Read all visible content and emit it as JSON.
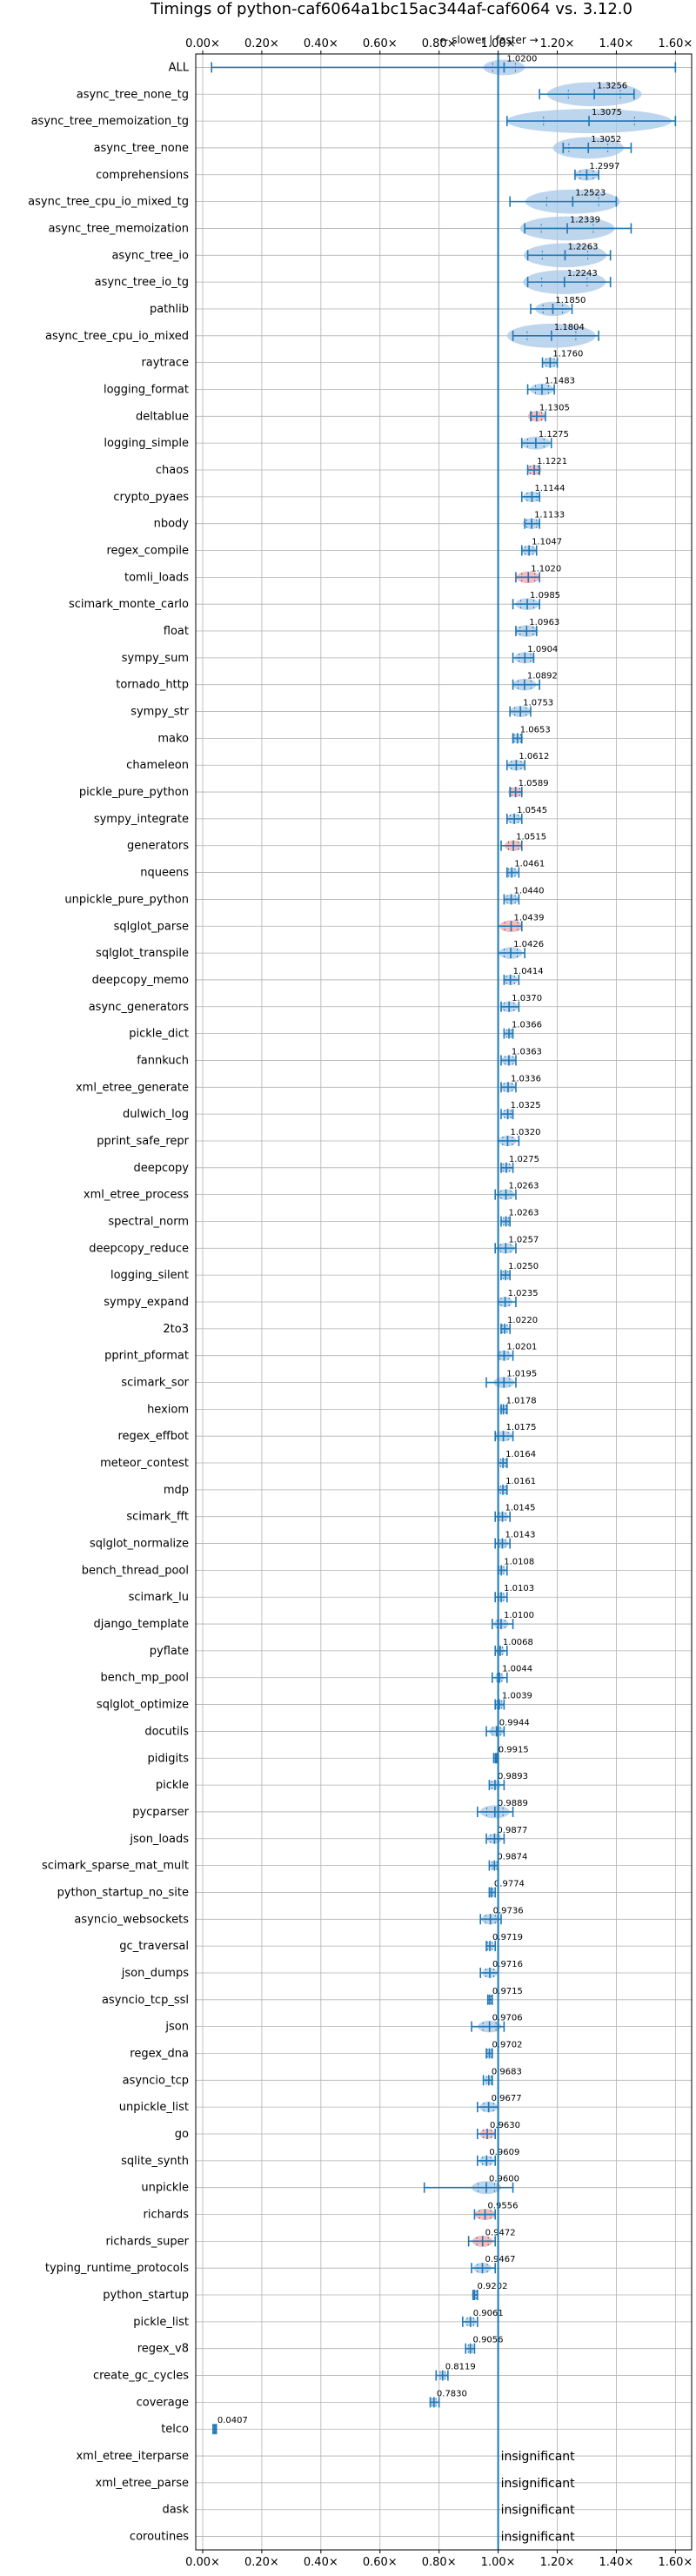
{
  "chart_data": {
    "type": "violin",
    "title": "Timings of python-caf6064a1bc15ac344af-caf6064 vs. 3.12.0",
    "annotation": "← slower | faster →",
    "xlim": [
      0.0,
      1.65
    ],
    "xticks": [
      0.0,
      0.2,
      0.4,
      0.6,
      0.8,
      1.0,
      1.2,
      1.4,
      1.6
    ],
    "xtick_labels": [
      "0.00×",
      "0.20×",
      "0.40×",
      "0.60×",
      "0.80×",
      "1.00×",
      "1.20×",
      "1.40×",
      "1.60×"
    ],
    "reference_line": 1.0,
    "insignificant_label": "insignificant",
    "grid": true,
    "colors": {
      "normal": "#1f77b4",
      "fill": "#a7c7e7",
      "highlight": "#f4a6a6",
      "grid": "#b0b0b0"
    },
    "benchmarks": [
      {
        "name": "ALL",
        "value": 1.02,
        "low": 0.03,
        "high": 1.6,
        "spread": 0.07,
        "highlight": false
      },
      {
        "name": "async_tree_none_tg",
        "value": 1.3256,
        "low": 1.14,
        "high": 1.46,
        "spread": 0.16,
        "highlight": false
      },
      {
        "name": "async_tree_memoization_tg",
        "value": 1.3075,
        "low": 1.03,
        "high": 1.6,
        "spread": 0.28,
        "highlight": false
      },
      {
        "name": "async_tree_none",
        "value": 1.3052,
        "low": 1.22,
        "high": 1.45,
        "spread": 0.12,
        "highlight": false
      },
      {
        "name": "comprehensions",
        "value": 1.2997,
        "low": 1.26,
        "high": 1.34,
        "spread": 0.04,
        "highlight": false
      },
      {
        "name": "async_tree_cpu_io_mixed_tg",
        "value": 1.2523,
        "low": 1.04,
        "high": 1.4,
        "spread": 0.16,
        "highlight": false
      },
      {
        "name": "async_tree_memoization",
        "value": 1.2339,
        "low": 1.09,
        "high": 1.45,
        "spread": 0.16,
        "highlight": false
      },
      {
        "name": "async_tree_io",
        "value": 1.2263,
        "low": 1.1,
        "high": 1.38,
        "spread": 0.14,
        "highlight": false
      },
      {
        "name": "async_tree_io_tg",
        "value": 1.2243,
        "low": 1.1,
        "high": 1.38,
        "spread": 0.14,
        "highlight": false
      },
      {
        "name": "pathlib",
        "value": 1.185,
        "low": 1.11,
        "high": 1.25,
        "spread": 0.06,
        "highlight": false
      },
      {
        "name": "async_tree_cpu_io_mixed",
        "value": 1.1804,
        "low": 1.05,
        "high": 1.34,
        "spread": 0.15,
        "highlight": false
      },
      {
        "name": "raytrace",
        "value": 1.176,
        "low": 1.15,
        "high": 1.2,
        "spread": 0.025,
        "highlight": false
      },
      {
        "name": "logging_format",
        "value": 1.1483,
        "low": 1.1,
        "high": 1.19,
        "spread": 0.04,
        "highlight": false
      },
      {
        "name": "deltablue",
        "value": 1.1305,
        "low": 1.11,
        "high": 1.16,
        "spread": 0.03,
        "highlight": true
      },
      {
        "name": "logging_simple",
        "value": 1.1275,
        "low": 1.08,
        "high": 1.18,
        "spread": 0.05,
        "highlight": false
      },
      {
        "name": "chaos",
        "value": 1.1221,
        "low": 1.1,
        "high": 1.14,
        "spread": 0.025,
        "highlight": true
      },
      {
        "name": "crypto_pyaes",
        "value": 1.1144,
        "low": 1.08,
        "high": 1.14,
        "spread": 0.03,
        "highlight": false
      },
      {
        "name": "nbody",
        "value": 1.1133,
        "low": 1.09,
        "high": 1.14,
        "spread": 0.03,
        "highlight": false
      },
      {
        "name": "regex_compile",
        "value": 1.1047,
        "low": 1.08,
        "high": 1.13,
        "spread": 0.025,
        "highlight": false
      },
      {
        "name": "tomli_loads",
        "value": 1.102,
        "low": 1.06,
        "high": 1.14,
        "spread": 0.04,
        "highlight": true
      },
      {
        "name": "scimark_monte_carlo",
        "value": 1.0985,
        "low": 1.05,
        "high": 1.14,
        "spread": 0.04,
        "highlight": false
      },
      {
        "name": "float",
        "value": 1.0963,
        "low": 1.06,
        "high": 1.13,
        "spread": 0.04,
        "highlight": false
      },
      {
        "name": "sympy_sum",
        "value": 1.0904,
        "low": 1.05,
        "high": 1.12,
        "spread": 0.035,
        "highlight": false
      },
      {
        "name": "tornado_http",
        "value": 1.0892,
        "low": 1.05,
        "high": 1.14,
        "spread": 0.04,
        "highlight": false
      },
      {
        "name": "sympy_str",
        "value": 1.0753,
        "low": 1.04,
        "high": 1.11,
        "spread": 0.035,
        "highlight": false
      },
      {
        "name": "mako",
        "value": 1.0653,
        "low": 1.05,
        "high": 1.08,
        "spread": 0.02,
        "highlight": false
      },
      {
        "name": "chameleon",
        "value": 1.0612,
        "low": 1.03,
        "high": 1.09,
        "spread": 0.03,
        "highlight": false
      },
      {
        "name": "pickle_pure_python",
        "value": 1.0589,
        "low": 1.04,
        "high": 1.08,
        "spread": 0.025,
        "highlight": true
      },
      {
        "name": "sympy_integrate",
        "value": 1.0545,
        "low": 1.03,
        "high": 1.08,
        "spread": 0.025,
        "highlight": false
      },
      {
        "name": "generators",
        "value": 1.0515,
        "low": 1.01,
        "high": 1.08,
        "spread": 0.03,
        "highlight": true
      },
      {
        "name": "nqueens",
        "value": 1.0461,
        "low": 1.03,
        "high": 1.07,
        "spread": 0.02,
        "highlight": false
      },
      {
        "name": "unpickle_pure_python",
        "value": 1.044,
        "low": 1.02,
        "high": 1.07,
        "spread": 0.025,
        "highlight": false
      },
      {
        "name": "sqlglot_parse",
        "value": 1.0439,
        "low": 1.0,
        "high": 1.08,
        "spread": 0.04,
        "highlight": true
      },
      {
        "name": "sqlglot_transpile",
        "value": 1.0426,
        "low": 1.0,
        "high": 1.09,
        "spread": 0.04,
        "highlight": false
      },
      {
        "name": "deepcopy_memo",
        "value": 1.0414,
        "low": 1.02,
        "high": 1.07,
        "spread": 0.025,
        "highlight": false
      },
      {
        "name": "async_generators",
        "value": 1.037,
        "low": 1.01,
        "high": 1.07,
        "spread": 0.03,
        "highlight": false
      },
      {
        "name": "pickle_dict",
        "value": 1.0366,
        "low": 1.02,
        "high": 1.05,
        "spread": 0.015,
        "highlight": false
      },
      {
        "name": "fannkuch",
        "value": 1.0363,
        "low": 1.01,
        "high": 1.06,
        "spread": 0.025,
        "highlight": false
      },
      {
        "name": "xml_etree_generate",
        "value": 1.0336,
        "low": 1.01,
        "high": 1.06,
        "spread": 0.025,
        "highlight": false
      },
      {
        "name": "dulwich_log",
        "value": 1.0325,
        "low": 1.01,
        "high": 1.05,
        "spread": 0.02,
        "highlight": false
      },
      {
        "name": "pprint_safe_repr",
        "value": 1.032,
        "low": 1.0,
        "high": 1.07,
        "spread": 0.03,
        "highlight": false
      },
      {
        "name": "deepcopy",
        "value": 1.0275,
        "low": 1.01,
        "high": 1.05,
        "spread": 0.02,
        "highlight": false
      },
      {
        "name": "xml_etree_process",
        "value": 1.0263,
        "low": 0.99,
        "high": 1.06,
        "spread": 0.03,
        "highlight": false
      },
      {
        "name": "spectral_norm",
        "value": 1.0263,
        "low": 1.01,
        "high": 1.04,
        "spread": 0.015,
        "highlight": false
      },
      {
        "name": "deepcopy_reduce",
        "value": 1.0257,
        "low": 0.99,
        "high": 1.06,
        "spread": 0.03,
        "highlight": false
      },
      {
        "name": "logging_silent",
        "value": 1.025,
        "low": 1.01,
        "high": 1.04,
        "spread": 0.015,
        "highlight": false
      },
      {
        "name": "sympy_expand",
        "value": 1.0235,
        "low": 1.0,
        "high": 1.06,
        "spread": 0.025,
        "highlight": false
      },
      {
        "name": "2to3",
        "value": 1.022,
        "low": 1.01,
        "high": 1.04,
        "spread": 0.015,
        "highlight": false
      },
      {
        "name": "pprint_pformat",
        "value": 1.0201,
        "low": 1.0,
        "high": 1.05,
        "spread": 0.025,
        "highlight": false
      },
      {
        "name": "scimark_sor",
        "value": 1.0195,
        "low": 0.96,
        "high": 1.06,
        "spread": 0.035,
        "highlight": false
      },
      {
        "name": "hexiom",
        "value": 1.0178,
        "low": 1.01,
        "high": 1.03,
        "spread": 0.015,
        "highlight": false
      },
      {
        "name": "regex_effbot",
        "value": 1.0175,
        "low": 0.99,
        "high": 1.05,
        "spread": 0.03,
        "highlight": false
      },
      {
        "name": "meteor_contest",
        "value": 1.0164,
        "low": 1.0,
        "high": 1.03,
        "spread": 0.015,
        "highlight": false
      },
      {
        "name": "mdp",
        "value": 1.0161,
        "low": 1.0,
        "high": 1.03,
        "spread": 0.015,
        "highlight": false
      },
      {
        "name": "scimark_fft",
        "value": 1.0145,
        "low": 0.99,
        "high": 1.04,
        "spread": 0.02,
        "highlight": false
      },
      {
        "name": "sqlglot_normalize",
        "value": 1.0143,
        "low": 0.99,
        "high": 1.04,
        "spread": 0.02,
        "highlight": false
      },
      {
        "name": "bench_thread_pool",
        "value": 1.0108,
        "low": 1.0,
        "high": 1.03,
        "spread": 0.015,
        "highlight": false
      },
      {
        "name": "scimark_lu",
        "value": 1.0103,
        "low": 0.99,
        "high": 1.03,
        "spread": 0.015,
        "highlight": false
      },
      {
        "name": "django_template",
        "value": 1.01,
        "low": 0.98,
        "high": 1.05,
        "spread": 0.025,
        "highlight": false
      },
      {
        "name": "pyflate",
        "value": 1.0068,
        "low": 0.99,
        "high": 1.03,
        "spread": 0.015,
        "highlight": false
      },
      {
        "name": "bench_mp_pool",
        "value": 1.0044,
        "low": 0.98,
        "high": 1.03,
        "spread": 0.015,
        "highlight": false
      },
      {
        "name": "sqlglot_optimize",
        "value": 1.0039,
        "low": 0.99,
        "high": 1.02,
        "spread": 0.015,
        "highlight": false
      },
      {
        "name": "docutils",
        "value": 0.9944,
        "low": 0.96,
        "high": 1.02,
        "spread": 0.025,
        "highlight": false
      },
      {
        "name": "pidigits",
        "value": 0.9915,
        "low": 0.985,
        "high": 0.995,
        "spread": 0.008,
        "highlight": false
      },
      {
        "name": "pickle",
        "value": 0.9893,
        "low": 0.97,
        "high": 1.02,
        "spread": 0.02,
        "highlight": false
      },
      {
        "name": "pycparser",
        "value": 0.9889,
        "low": 0.93,
        "high": 1.05,
        "spread": 0.05,
        "highlight": false
      },
      {
        "name": "json_loads",
        "value": 0.9877,
        "low": 0.96,
        "high": 1.02,
        "spread": 0.025,
        "highlight": false
      },
      {
        "name": "scimark_sparse_mat_mult",
        "value": 0.9874,
        "low": 0.97,
        "high": 1.0,
        "spread": 0.015,
        "highlight": false
      },
      {
        "name": "python_startup_no_site",
        "value": 0.9774,
        "low": 0.97,
        "high": 0.99,
        "spread": 0.01,
        "highlight": false
      },
      {
        "name": "asyncio_websockets",
        "value": 0.9736,
        "low": 0.94,
        "high": 1.01,
        "spread": 0.03,
        "highlight": false
      },
      {
        "name": "gc_traversal",
        "value": 0.9719,
        "low": 0.96,
        "high": 0.99,
        "spread": 0.015,
        "highlight": false
      },
      {
        "name": "json_dumps",
        "value": 0.9716,
        "low": 0.94,
        "high": 1.0,
        "spread": 0.025,
        "highlight": false
      },
      {
        "name": "asyncio_tcp_ssl",
        "value": 0.9715,
        "low": 0.965,
        "high": 0.98,
        "spread": 0.008,
        "highlight": false
      },
      {
        "name": "json",
        "value": 0.9706,
        "low": 0.91,
        "high": 1.02,
        "spread": 0.04,
        "highlight": false
      },
      {
        "name": "regex_dna",
        "value": 0.9702,
        "low": 0.96,
        "high": 0.98,
        "spread": 0.012,
        "highlight": false
      },
      {
        "name": "asyncio_tcp",
        "value": 0.9683,
        "low": 0.95,
        "high": 0.98,
        "spread": 0.015,
        "highlight": false
      },
      {
        "name": "unpickle_list",
        "value": 0.9677,
        "low": 0.93,
        "high": 1.0,
        "spread": 0.03,
        "highlight": false
      },
      {
        "name": "go",
        "value": 0.963,
        "low": 0.93,
        "high": 0.99,
        "spread": 0.025,
        "highlight": true
      },
      {
        "name": "sqlite_synth",
        "value": 0.9609,
        "low": 0.93,
        "high": 0.99,
        "spread": 0.025,
        "highlight": false
      },
      {
        "name": "unpickle",
        "value": 0.96,
        "low": 0.75,
        "high": 1.05,
        "spread": 0.05,
        "highlight": false
      },
      {
        "name": "richards",
        "value": 0.9556,
        "low": 0.92,
        "high": 0.99,
        "spread": 0.035,
        "highlight": true
      },
      {
        "name": "richards_super",
        "value": 0.9472,
        "low": 0.9,
        "high": 0.99,
        "spread": 0.035,
        "highlight": true
      },
      {
        "name": "typing_runtime_protocols",
        "value": 0.9467,
        "low": 0.91,
        "high": 0.99,
        "spread": 0.03,
        "highlight": false
      },
      {
        "name": "python_startup",
        "value": 0.9202,
        "low": 0.915,
        "high": 0.93,
        "spread": 0.01,
        "highlight": false
      },
      {
        "name": "pickle_list",
        "value": 0.9061,
        "low": 0.88,
        "high": 0.93,
        "spread": 0.02,
        "highlight": false
      },
      {
        "name": "regex_v8",
        "value": 0.9056,
        "low": 0.89,
        "high": 0.92,
        "spread": 0.012,
        "highlight": false
      },
      {
        "name": "create_gc_cycles",
        "value": 0.8119,
        "low": 0.79,
        "high": 0.83,
        "spread": 0.015,
        "highlight": false
      },
      {
        "name": "coverage",
        "value": 0.783,
        "low": 0.77,
        "high": 0.8,
        "spread": 0.012,
        "highlight": false
      },
      {
        "name": "telco",
        "value": 0.0407,
        "low": 0.035,
        "high": 0.046,
        "spread": 0.005,
        "highlight": false
      },
      {
        "name": "xml_etree_iterparse",
        "value": null,
        "insignificant": true
      },
      {
        "name": "xml_etree_parse",
        "value": null,
        "insignificant": true
      },
      {
        "name": "dask",
        "value": null,
        "insignificant": true
      },
      {
        "name": "coroutines",
        "value": null,
        "insignificant": true
      }
    ]
  }
}
